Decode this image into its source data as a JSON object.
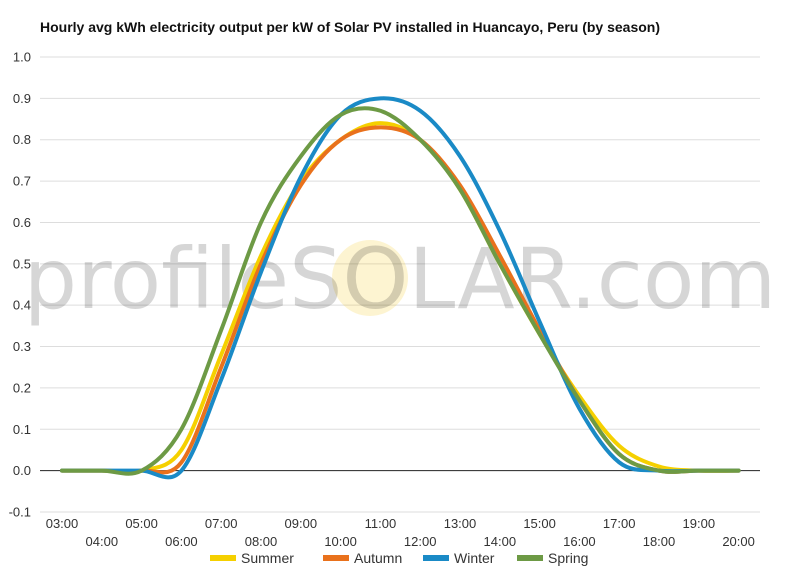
{
  "chart_data": {
    "type": "line",
    "title": "Hourly avg kWh electricity output per kW of Solar PV installed in Huancayo, Peru (by season)",
    "xlabel": "",
    "ylabel": "",
    "ylim": [
      -0.1,
      1.0
    ],
    "yticks": [
      -0.1,
      0.0,
      0.1,
      0.2,
      0.3,
      0.4,
      0.5,
      0.6,
      0.7,
      0.8,
      0.9,
      1.0
    ],
    "ytick_labels": [
      "-0.1",
      "0.0",
      "0.1",
      "0.2",
      "0.3",
      "0.4",
      "0.5",
      "0.6",
      "0.7",
      "0.8",
      "0.9",
      "1.0"
    ],
    "x": [
      "03:00",
      "04:00",
      "05:00",
      "06:00",
      "07:00",
      "08:00",
      "09:00",
      "10:00",
      "11:00",
      "12:00",
      "13:00",
      "14:00",
      "15:00",
      "16:00",
      "17:00",
      "18:00",
      "19:00",
      "20:00"
    ],
    "xtick_labels_upper": [
      "03:00",
      "05:00",
      "07:00",
      "09:00",
      "11:00",
      "13:00",
      "15:00",
      "17:00",
      "19:00"
    ],
    "xtick_labels_lower": [
      "04:00",
      "06:00",
      "08:00",
      "10:00",
      "12:00",
      "14:00",
      "16:00",
      "18:00",
      "20:00"
    ],
    "grid": true,
    "legend_position": "bottom",
    "watermark": "profileSOLAR.com",
    "series": [
      {
        "name": "Summer",
        "color": "#f5d000",
        "values": [
          0.0,
          0.0,
          0.0,
          0.05,
          0.28,
          0.52,
          0.7,
          0.8,
          0.84,
          0.8,
          0.68,
          0.5,
          0.33,
          0.18,
          0.06,
          0.01,
          0.0,
          0.0
        ]
      },
      {
        "name": "Autumn",
        "color": "#e9711c",
        "values": [
          0.0,
          0.0,
          0.0,
          0.02,
          0.25,
          0.5,
          0.69,
          0.8,
          0.83,
          0.8,
          0.69,
          0.52,
          0.34,
          0.17,
          0.04,
          0.0,
          0.0,
          0.0
        ]
      },
      {
        "name": "Winter",
        "color": "#1a8ac6",
        "values": [
          0.0,
          0.0,
          0.0,
          0.0,
          0.22,
          0.48,
          0.71,
          0.86,
          0.9,
          0.87,
          0.76,
          0.58,
          0.36,
          0.15,
          0.02,
          0.0,
          0.0,
          0.0
        ]
      },
      {
        "name": "Spring",
        "color": "#6d9a45",
        "values": [
          0.0,
          0.0,
          0.0,
          0.1,
          0.34,
          0.6,
          0.76,
          0.86,
          0.87,
          0.8,
          0.68,
          0.5,
          0.33,
          0.17,
          0.04,
          0.0,
          0.0,
          0.0
        ]
      }
    ]
  }
}
